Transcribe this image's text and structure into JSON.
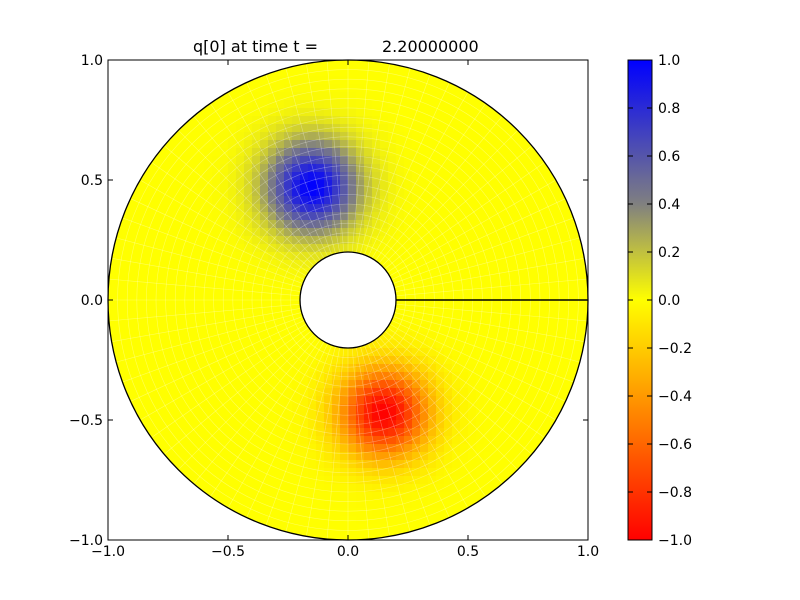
{
  "chart_data": {
    "type": "heatmap",
    "title_parts": [
      "q[0] at time t =",
      "2.20000000"
    ],
    "xlabel": "",
    "ylabel": "",
    "xlim": [
      -1.0,
      1.0
    ],
    "ylim": [
      -1.0,
      1.0
    ],
    "x_ticks": [
      -1.0,
      -0.5,
      0.0,
      0.5,
      1.0
    ],
    "y_ticks": [
      -1.0,
      -0.5,
      0.0,
      0.5,
      1.0
    ],
    "x_tick_labels": [
      "−1.0",
      "−0.5",
      "0.0",
      "0.5",
      "1.0"
    ],
    "y_tick_labels": [
      "−1.0",
      "−0.5",
      "0.0",
      "0.5",
      "1.0"
    ],
    "domain": {
      "shape": "annulus",
      "inner_radius": 0.2,
      "outer_radius": 1.0,
      "cut_line": {
        "from": [
          0.2,
          0.0
        ],
        "to": [
          1.0,
          0.0
        ]
      }
    },
    "features": [
      {
        "center": [
          -0.15,
          0.47
        ],
        "peak_value": 1.0
      },
      {
        "center": [
          0.15,
          -0.47
        ],
        "peak_value": -1.0
      }
    ],
    "background_value": 0.0,
    "colorbar": {
      "range": [
        -1.0,
        1.0
      ],
      "ticks": [
        1.0,
        0.8,
        0.6,
        0.4,
        0.2,
        0.0,
        -0.2,
        -0.4,
        -0.6,
        -0.8,
        -1.0
      ],
      "tick_labels": [
        "1.0",
        "0.8",
        "0.6",
        "0.4",
        "0.2",
        "0.0",
        "−0.2",
        "−0.4",
        "−0.6",
        "−0.8",
        "−1.0"
      ],
      "colors": {
        "max": "#0000ff",
        "zero": "#ffff00",
        "min": "#ff0000",
        "mid_positive": "#808080"
      }
    },
    "grid": false
  }
}
